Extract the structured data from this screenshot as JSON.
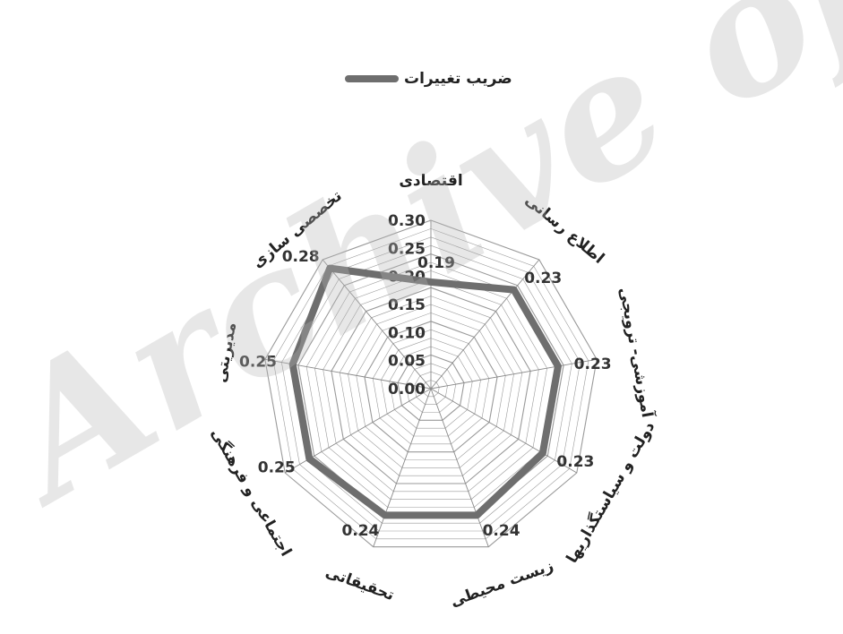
{
  "chart_data": {
    "type": "radar",
    "legend": "ضریب تغییرات",
    "legend_position": "top",
    "categories": [
      "اقتصادی",
      "اطلاع رسانی",
      "آموزشی- ترویجی",
      "دولت و سیاستگذاریها",
      "زیست محیطی",
      "تحقیقاتی",
      "اجتماعی و فرهنگی",
      "مدیریتی",
      "تخصصی سازی"
    ],
    "series": [
      {
        "name": "ضریب تغییرات",
        "values": [
          0.19,
          0.23,
          0.23,
          0.23,
          0.24,
          0.24,
          0.25,
          0.25,
          0.28
        ],
        "color": "#6e6e6e"
      }
    ],
    "value_labels": [
      "0.19",
      "0.23",
      "0.23",
      "0.23",
      "0.24",
      "0.24",
      "0.25",
      "0.25",
      "0.28"
    ],
    "radial_ticks": [
      "0.00",
      "0.05",
      "0.10",
      "0.15",
      "0.20",
      "0.25",
      "0.30"
    ],
    "rlim": [
      0,
      0.3
    ],
    "grid": true
  },
  "watermark": "Archive of SID"
}
